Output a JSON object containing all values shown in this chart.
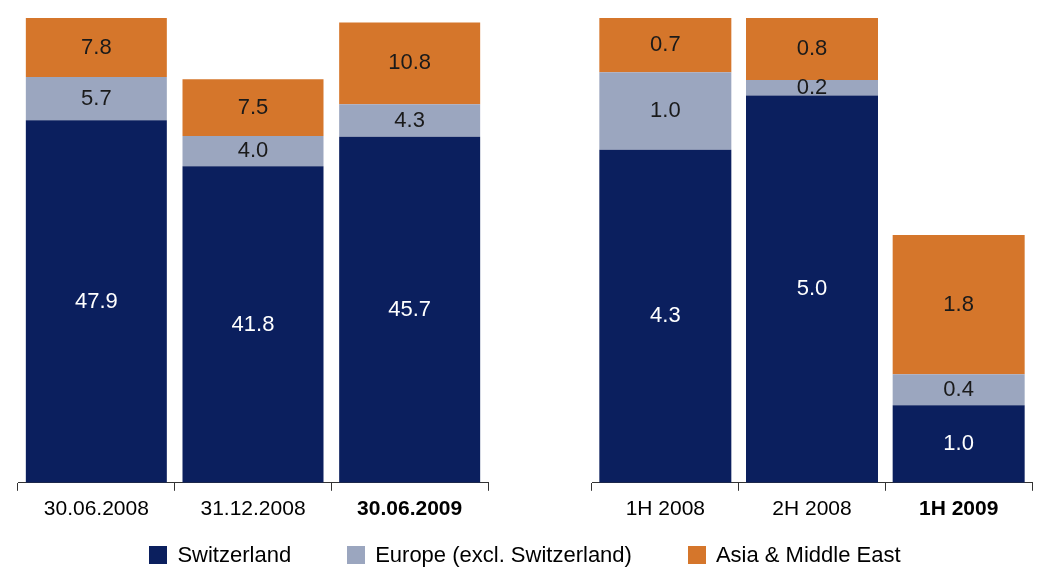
{
  "chart_data": [
    {
      "type": "bar",
      "stacked": true,
      "categories": [
        "30.06.2008",
        "31.12.2008",
        "30.06.2009"
      ],
      "tick_labels": "x",
      "legend": "bottom",
      "series": [
        {
          "name": "Switzerland",
          "color": "#0b1f5e",
          "values": [
            47.9,
            41.8,
            45.7
          ],
          "value_labels": [
            "47.9",
            "41.8",
            "45.7"
          ]
        },
        {
          "name": "Europe (excl. Switzerland)",
          "color": "#9ba6bf",
          "values": [
            5.7,
            4.0,
            4.3
          ],
          "value_labels": [
            "5.7",
            "4.0",
            "4.3"
          ]
        },
        {
          "name": "Asia & Middle East",
          "color": "#d5762b",
          "values": [
            7.8,
            7.5,
            10.8
          ],
          "value_labels": [
            "7.8",
            "7.5",
            "10.8"
          ]
        }
      ]
    },
    {
      "type": "bar",
      "stacked": true,
      "categories": [
        "1H 2008",
        "2H 2008",
        "1H 2009"
      ],
      "tick_labels": "x",
      "series": [
        {
          "color": "#0b1f5e",
          "values": [
            4.3,
            5.0,
            1.0
          ],
          "value_labels": [
            "4.3",
            "5.0",
            "1.0"
          ]
        },
        {
          "color": "#9ba6bf",
          "values": [
            1.0,
            0.2,
            0.4
          ],
          "value_labels": [
            "1.0",
            "0.2",
            "0.4"
          ]
        },
        {
          "color": "#d5762b",
          "values": [
            0.7,
            0.8,
            1.8
          ],
          "value_labels": [
            "0.7",
            "0.8",
            "1.8"
          ]
        }
      ]
    }
  ]
}
